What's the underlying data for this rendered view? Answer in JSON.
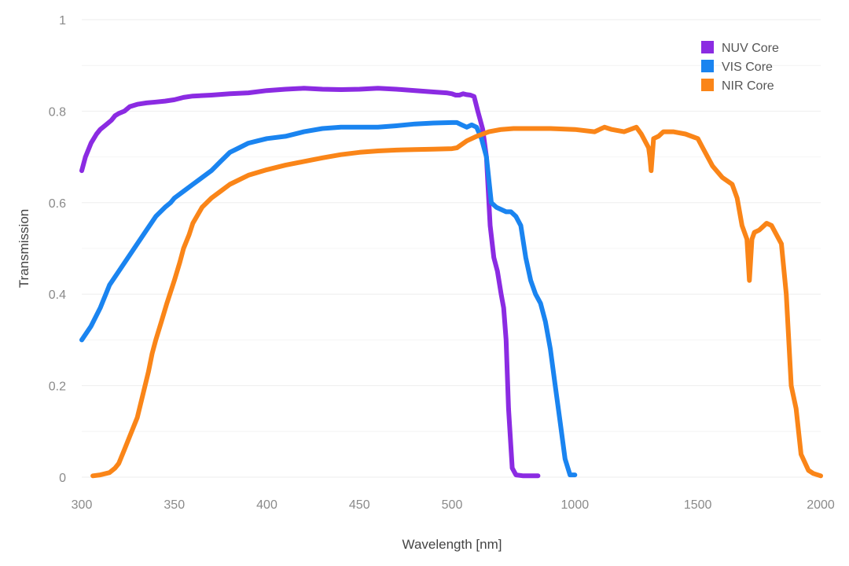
{
  "chart_data": {
    "type": "line",
    "xlabel": "Wavelength [nm]",
    "ylabel": "Transmission",
    "grid": true,
    "legend_position": "top-right",
    "x_scale": "piecewise-linear (300–500 nm at one scale, 500–2000 nm compressed)",
    "x_ticks": [
      300,
      350,
      400,
      450,
      500,
      1000,
      1500,
      2000
    ],
    "x_tick_labels": [
      "300",
      "350",
      "400",
      "450",
      "500",
      "1000",
      "1500",
      "2000"
    ],
    "y_ticks": [
      0,
      0.2,
      0.4,
      0.6,
      0.8,
      1
    ],
    "y_tick_labels": [
      "0",
      "0.2",
      "0.4",
      "0.6",
      "0.8",
      "1"
    ],
    "ylim": [
      0,
      1
    ],
    "xlim": [
      300,
      2000
    ],
    "series": [
      {
        "name": "NUV Core",
        "color": "#8B2BE2",
        "x": [
          300,
          302,
          305,
          308,
          310,
          313,
          316,
          318,
          320,
          323,
          326,
          330,
          335,
          340,
          345,
          350,
          355,
          360,
          370,
          380,
          390,
          400,
          410,
          420,
          430,
          440,
          450,
          460,
          470,
          480,
          490,
          497,
          500,
          505,
          515,
          530,
          545,
          560,
          575,
          590,
          605,
          615,
          625,
          640,
          655,
          670,
          685,
          700,
          710,
          720,
          730,
          745,
          760,
          790,
          820,
          850
        ],
        "y": [
          0.67,
          0.7,
          0.73,
          0.75,
          0.76,
          0.77,
          0.78,
          0.79,
          0.795,
          0.8,
          0.81,
          0.815,
          0.818,
          0.82,
          0.822,
          0.825,
          0.83,
          0.833,
          0.835,
          0.838,
          0.84,
          0.845,
          0.848,
          0.85,
          0.848,
          0.847,
          0.848,
          0.85,
          0.848,
          0.845,
          0.842,
          0.84,
          0.838,
          0.837,
          0.835,
          0.835,
          0.838,
          0.836,
          0.835,
          0.832,
          0.8,
          0.78,
          0.76,
          0.7,
          0.55,
          0.48,
          0.45,
          0.4,
          0.37,
          0.3,
          0.15,
          0.02,
          0.005,
          0.003,
          0.003,
          0.003
        ]
      },
      {
        "name": "VIS Core",
        "color": "#1A84F0",
        "x": [
          300,
          305,
          310,
          313,
          315,
          320,
          325,
          330,
          335,
          340,
          345,
          348,
          350,
          355,
          360,
          365,
          370,
          375,
          380,
          385,
          390,
          395,
          400,
          410,
          420,
          430,
          440,
          450,
          460,
          470,
          480,
          490,
          500,
          520,
          540,
          560,
          580,
          600,
          620,
          640,
          660,
          680,
          700,
          720,
          740,
          760,
          780,
          800,
          820,
          840,
          860,
          880,
          900,
          920,
          940,
          960,
          980,
          1000
        ],
        "y": [
          0.3,
          0.33,
          0.37,
          0.4,
          0.42,
          0.45,
          0.48,
          0.51,
          0.54,
          0.57,
          0.59,
          0.6,
          0.61,
          0.625,
          0.64,
          0.655,
          0.67,
          0.69,
          0.71,
          0.72,
          0.73,
          0.735,
          0.74,
          0.745,
          0.755,
          0.762,
          0.765,
          0.765,
          0.765,
          0.768,
          0.772,
          0.774,
          0.775,
          0.775,
          0.77,
          0.765,
          0.77,
          0.765,
          0.74,
          0.7,
          0.6,
          0.59,
          0.585,
          0.58,
          0.58,
          0.57,
          0.55,
          0.48,
          0.43,
          0.4,
          0.38,
          0.34,
          0.28,
          0.2,
          0.12,
          0.04,
          0.005,
          0.005
        ]
      },
      {
        "name": "NIR Core",
        "color": "#FA8518",
        "x": [
          306,
          310,
          315,
          318,
          320,
          323,
          326,
          330,
          333,
          336,
          338,
          340,
          343,
          346,
          350,
          353,
          355,
          358,
          360,
          365,
          370,
          375,
          380,
          390,
          400,
          410,
          420,
          430,
          440,
          450,
          460,
          470,
          480,
          490,
          500,
          520,
          560,
          600,
          650,
          700,
          750,
          800,
          900,
          1000,
          1080,
          1120,
          1150,
          1200,
          1250,
          1270,
          1300,
          1305,
          1310,
          1320,
          1340,
          1360,
          1400,
          1450,
          1500,
          1520,
          1560,
          1600,
          1640,
          1660,
          1680,
          1700,
          1710,
          1720,
          1730,
          1750,
          1780,
          1800,
          1840,
          1860,
          1880,
          1900,
          1920,
          1950,
          1970,
          2000
        ],
        "y": [
          0.003,
          0.005,
          0.01,
          0.02,
          0.03,
          0.06,
          0.09,
          0.13,
          0.18,
          0.23,
          0.27,
          0.3,
          0.34,
          0.38,
          0.43,
          0.47,
          0.5,
          0.53,
          0.555,
          0.59,
          0.61,
          0.625,
          0.64,
          0.66,
          0.672,
          0.682,
          0.69,
          0.698,
          0.705,
          0.71,
          0.713,
          0.715,
          0.716,
          0.717,
          0.718,
          0.72,
          0.735,
          0.745,
          0.755,
          0.76,
          0.762,
          0.762,
          0.762,
          0.76,
          0.755,
          0.765,
          0.76,
          0.755,
          0.765,
          0.75,
          0.72,
          0.7,
          0.67,
          0.74,
          0.745,
          0.755,
          0.755,
          0.75,
          0.74,
          0.72,
          0.68,
          0.655,
          0.64,
          0.61,
          0.55,
          0.52,
          0.43,
          0.52,
          0.535,
          0.54,
          0.555,
          0.55,
          0.51,
          0.4,
          0.2,
          0.15,
          0.05,
          0.015,
          0.008,
          0.003
        ]
      }
    ]
  }
}
